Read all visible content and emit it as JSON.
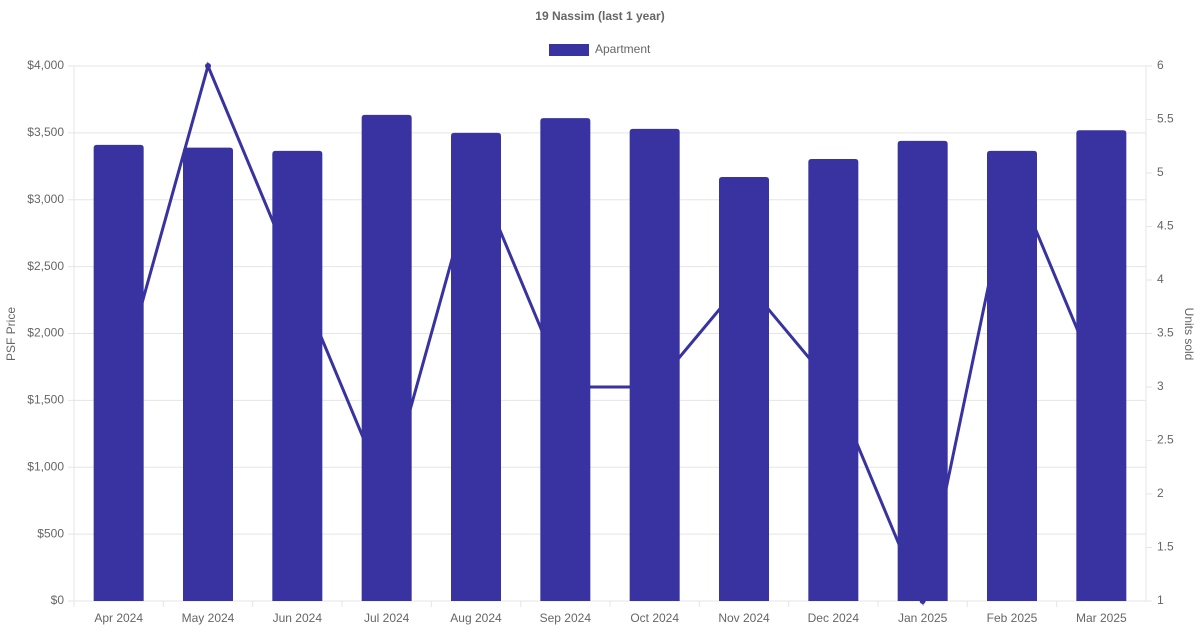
{
  "chart_data": {
    "type": "bar",
    "title": "19 Nassim (last 1 year)",
    "y_label": "PSF Price",
    "y2_label": "Units sold",
    "categories": [
      "Apr 2024",
      "May 2024",
      "Jun 2024",
      "Jul 2024",
      "Aug 2024",
      "Sep 2024",
      "Oct 2024",
      "Nov 2024",
      "Dec 2024",
      "Jan 2025",
      "Feb 2025",
      "Mar 2025"
    ],
    "series": [
      {
        "name": "Apartment",
        "type": "bar",
        "color": "#3833a0",
        "values": [
          3410,
          3390,
          3365,
          3635,
          3500,
          3610,
          3530,
          3170,
          3305,
          3440,
          3365,
          3520
        ]
      },
      {
        "type": "line",
        "axis": "y2",
        "color": "#3833a0",
        "values": [
          3,
          6,
          4,
          2,
          5,
          3,
          3,
          4,
          3,
          1,
          5,
          3
        ]
      }
    ],
    "ylim": [
      0,
      4000
    ],
    "yticks": [
      {
        "value": 0,
        "label": "$0"
      },
      {
        "value": 500,
        "label": "$500"
      },
      {
        "value": 1000,
        "label": "$1,000"
      },
      {
        "value": 1500,
        "label": "$1,500"
      },
      {
        "value": 2000,
        "label": "$2,000"
      },
      {
        "value": 2500,
        "label": "$2,500"
      },
      {
        "value": 3000,
        "label": "$3,000"
      },
      {
        "value": 3500,
        "label": "$3,500"
      },
      {
        "value": 4000,
        "label": "$4,000"
      }
    ],
    "y2lim": [
      1,
      6
    ],
    "y2ticks": [
      1,
      1.5,
      2,
      2.5,
      3,
      3.5,
      4,
      4.5,
      5,
      5.5,
      6
    ],
    "grid": true
  }
}
